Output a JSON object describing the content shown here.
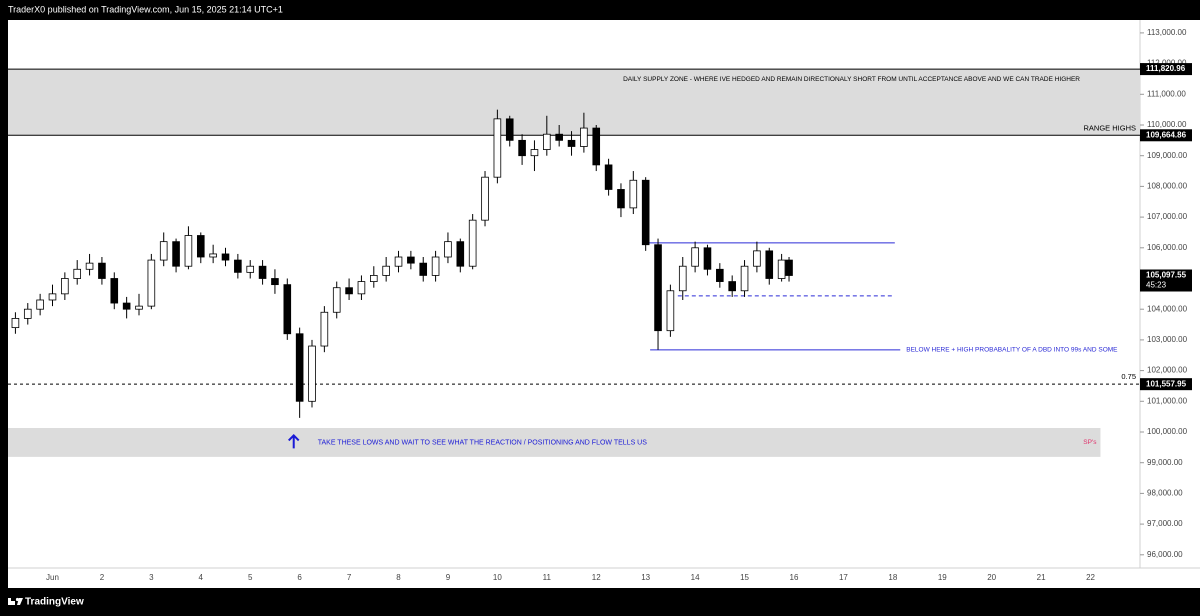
{
  "header": {
    "text": "TraderX0 published on TradingView.com, Jun 15, 2025 21:14 UTC+1"
  },
  "footer": {
    "brand": "TradingView"
  },
  "chart_data": {
    "type": "candlestick",
    "up_color": "#ffffff",
    "down_color": "#000000",
    "wick_color": "#000000",
    "x": [
      0.25,
      0.5,
      0.75,
      1.0,
      1.25,
      1.5,
      1.75,
      2.0,
      2.25,
      2.5,
      2.75,
      3.0,
      3.25,
      3.5,
      3.75,
      4.0,
      4.25,
      4.5,
      4.75,
      5.0,
      5.25,
      5.5,
      5.75,
      6.0,
      6.25,
      6.5,
      6.75,
      7.0,
      7.25,
      7.5,
      7.75,
      8.0,
      8.25,
      8.5,
      8.75,
      9.0,
      9.25,
      9.5,
      9.75,
      10.0,
      10.25,
      10.5,
      10.75,
      11.0,
      11.25,
      11.5,
      11.75,
      12.0,
      12.25,
      12.5,
      12.75,
      13.0,
      13.25,
      13.5,
      13.75,
      14.0,
      14.25,
      14.5,
      14.75,
      15.0,
      15.25,
      15.5,
      15.75,
      15.9
    ],
    "open": [
      103400,
      103700,
      104000,
      104300,
      104500,
      105000,
      105300,
      105500,
      105000,
      104200,
      104000,
      104100,
      105600,
      106200,
      105400,
      106400,
      105700,
      105800,
      105600,
      105200,
      105400,
      105000,
      104800,
      103200,
      101000,
      102800,
      103900,
      104700,
      104500,
      104900,
      105100,
      105400,
      105700,
      105500,
      105100,
      105700,
      106200,
      105400,
      106900,
      108300,
      110200,
      109500,
      109000,
      109200,
      109700,
      109500,
      109300,
      109900,
      108700,
      107900,
      107300,
      108200,
      106100,
      103300,
      104600,
      105400,
      106000,
      105300,
      104900,
      104600,
      105400,
      105900,
      105000,
      105600
    ],
    "high": [
      103900,
      104200,
      104500,
      104800,
      105200,
      105600,
      105800,
      105700,
      105200,
      104400,
      104500,
      105800,
      106500,
      106300,
      106700,
      106500,
      106100,
      106000,
      105800,
      105600,
      105600,
      105300,
      105000,
      103400,
      103000,
      104100,
      104900,
      105000,
      105100,
      105400,
      105700,
      105900,
      105900,
      105700,
      105900,
      106500,
      106300,
      107100,
      108500,
      110500,
      110300,
      109700,
      109500,
      110300,
      110000,
      109800,
      110400,
      110000,
      108900,
      108100,
      108500,
      108300,
      106300,
      104800,
      105700,
      106200,
      106100,
      105500,
      105100,
      105600,
      106200,
      106000,
      105800,
      105700
    ],
    "low": [
      103200,
      103500,
      103800,
      104100,
      104300,
      104800,
      105100,
      104800,
      104000,
      103700,
      103800,
      104000,
      105400,
      105200,
      105300,
      105500,
      105500,
      105400,
      105000,
      105000,
      104800,
      104500,
      103000,
      100460,
      100800,
      102600,
      103700,
      104300,
      104300,
      104700,
      104900,
      105200,
      105300,
      104900,
      104900,
      105500,
      105200,
      105300,
      106700,
      108100,
      109300,
      108700,
      108500,
      109000,
      109300,
      109000,
      109100,
      108500,
      107700,
      107000,
      107100,
      105900,
      102680,
      103100,
      104300,
      105200,
      105100,
      104700,
      104400,
      104400,
      105200,
      104800,
      104900,
      104900
    ],
    "close": [
      103700,
      104000,
      104300,
      104500,
      105000,
      105300,
      105500,
      105000,
      104200,
      104000,
      104100,
      105600,
      106200,
      105400,
      106400,
      105700,
      105800,
      105600,
      105200,
      105400,
      105000,
      104800,
      103200,
      101000,
      102800,
      103900,
      104700,
      104500,
      104900,
      105100,
      105400,
      105700,
      105500,
      105100,
      105700,
      106200,
      105400,
      106900,
      108300,
      110200,
      109500,
      109000,
      109200,
      109700,
      109500,
      109300,
      109900,
      108700,
      107900,
      107300,
      108200,
      106100,
      103300,
      104600,
      105400,
      106000,
      105300,
      104900,
      104600,
      105400,
      105900,
      105000,
      105600,
      105097.55
    ],
    "xlim": [
      0.1,
      23.0
    ],
    "xticks": [
      {
        "value": 1,
        "label": "Jun"
      },
      2,
      3,
      4,
      5,
      6,
      7,
      8,
      9,
      10,
      11,
      12,
      13,
      14,
      15,
      16,
      17,
      18,
      19,
      20,
      21,
      22
    ],
    "ylim": [
      95570,
      113420
    ],
    "yticks": [
      {
        "value": 113000,
        "label": "113,000.00"
      },
      {
        "value": 112000,
        "label": "112,000.00"
      },
      {
        "value": 111000,
        "label": "111,000.00"
      },
      {
        "value": 110000,
        "label": "110,000.00"
      },
      {
        "value": 109000,
        "label": "109,000.00"
      },
      {
        "value": 108000,
        "label": "108,000.00"
      },
      {
        "value": 107000,
        "label": "107,000.00"
      },
      {
        "value": 106000,
        "label": "106,000.00"
      },
      {
        "value": 105000,
        "label": "105,000.00"
      },
      {
        "value": 104000,
        "label": "104,000.00"
      },
      {
        "value": 103000,
        "label": "103,000.00"
      },
      {
        "value": 102000,
        "label": "102,000.00"
      },
      {
        "value": 101000,
        "label": "101,000.00"
      },
      {
        "value": 100000,
        "label": "100,000.00"
      },
      {
        "value": 99000,
        "label": "99,000.00"
      },
      {
        "value": 98000,
        "label": "98,000.00"
      },
      {
        "value": 97000,
        "label": "97,000.00"
      },
      {
        "value": 96000,
        "label": "96,000.00"
      }
    ],
    "zones": [
      {
        "from": 109664.86,
        "to": 111820.96,
        "x_from": 0.1,
        "x_to": 23.0,
        "color": "#dcdcdc",
        "label": "DAILY SUPPLY ZONE - WHERE IVE HEDGED AND REMAIN DIRECTIONALY SHORT FROM UNTIL ACCEPTANCE ABOVE AND WE CAN TRADE HIGHER",
        "label_color": "#000000"
      },
      {
        "from": 99190,
        "to": 100130,
        "x_from": 0.1,
        "x_to": 22.2,
        "color": "#dcdcdc",
        "label": "TAKE THESE LOWS AND WAIT TO SEE WHAT THE REACTION / POSITIONING AND  FLOW TELLS US",
        "label_color": "#1a1ad6",
        "arrow_at": 5.88,
        "note": "SP's",
        "note_color": "#e0306a"
      }
    ],
    "levels": [
      {
        "value": 111820.96,
        "label": "111,820.96",
        "dashed": false
      },
      {
        "value": 109664.86,
        "label": "109,664.86",
        "note": "RANGE HIGHS",
        "dashed": false
      },
      {
        "value": 101557.95,
        "label": "101,557.95",
        "note": "0.75",
        "dashed": true
      }
    ],
    "rays": [
      {
        "value": 106160,
        "x_from": 12.94,
        "x_to": 18.04,
        "color": "#2b2bd6",
        "dashed": false
      },
      {
        "value": 104433,
        "x_from": 13.65,
        "x_to": 18.04,
        "color": "#2b2bd6",
        "dashed": true
      },
      {
        "value": 102674,
        "x_from": 13.09,
        "x_to": 18.15,
        "color": "#2b2bd6",
        "dashed": false,
        "label": "BELOW HERE + HIGH PROBABALITY OF A DBD INTO 99s AND SOME"
      }
    ],
    "last_price": {
      "value": 105097.55,
      "label": "105,097.55",
      "countdown": "45:23"
    }
  }
}
